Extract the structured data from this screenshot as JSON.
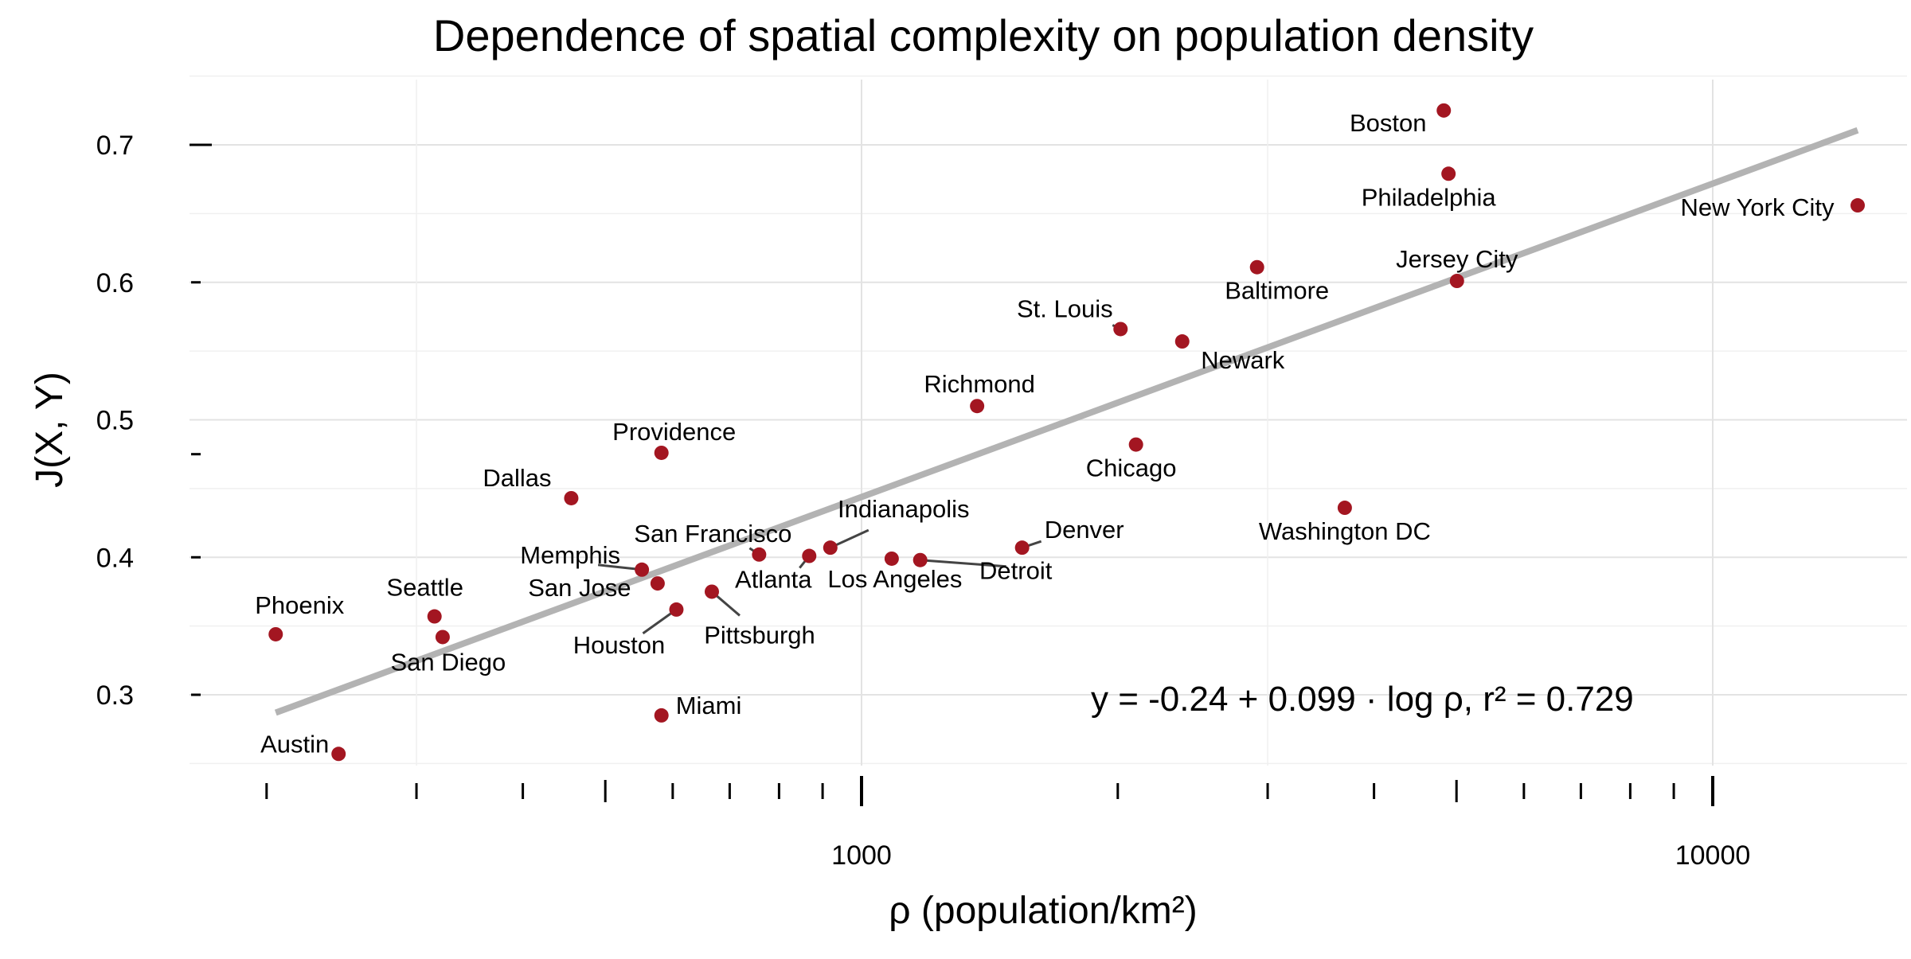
{
  "chart_data": {
    "type": "scatter",
    "title": "Dependence of spatial complexity on population density",
    "xlabel": "ρ (population/km²)",
    "ylabel": "J(X, Y)",
    "x_scale": "log",
    "xlim": [
      150,
      20000
    ],
    "ylim": [
      0.24,
      0.75
    ],
    "x_ticks": [
      {
        "value": 1000,
        "label": "1000"
      },
      {
        "value": 10000,
        "label": "10000"
      }
    ],
    "y_ticks": [
      {
        "value": 0.3,
        "label": "0.3"
      },
      {
        "value": 0.4,
        "label": "0.4"
      },
      {
        "value": 0.5,
        "label": "0.5"
      },
      {
        "value": 0.6,
        "label": "0.6"
      },
      {
        "value": 0.7,
        "label": "0.7"
      }
    ],
    "grid": true,
    "point_color": "#a31621",
    "fit_line_color": "#b3b3b3",
    "fit": {
      "intercept": -0.24,
      "slope": 0.099,
      "r2": 0.729,
      "x_range": [
        205,
        14800
      ],
      "equation_text": "y = -0.24 + 0.099 · log ρ,  r² = 0.729"
    },
    "points": [
      {
        "name": "Phoenix",
        "x": 205,
        "y": 0.344
      },
      {
        "name": "Austin",
        "x": 243,
        "y": 0.257
      },
      {
        "name": "Seattle",
        "x": 315,
        "y": 0.357
      },
      {
        "name": "San Diego",
        "x": 322,
        "y": 0.342
      },
      {
        "name": "Dallas",
        "x": 456,
        "y": 0.443
      },
      {
        "name": "Memphis",
        "x": 552,
        "y": 0.391
      },
      {
        "name": "San Jose",
        "x": 576,
        "y": 0.381
      },
      {
        "name": "Providence",
        "x": 582,
        "y": 0.476
      },
      {
        "name": "Miami",
        "x": 582,
        "y": 0.285
      },
      {
        "name": "Houston",
        "x": 606,
        "y": 0.362
      },
      {
        "name": "Pittsburgh",
        "x": 667,
        "y": 0.375
      },
      {
        "name": "San Francisco",
        "x": 758,
        "y": 0.402
      },
      {
        "name": "Atlanta",
        "x": 868,
        "y": 0.401
      },
      {
        "name": "Indianapolis",
        "x": 919,
        "y": 0.407
      },
      {
        "name": "Los Angeles",
        "x": 1085,
        "y": 0.399
      },
      {
        "name": "Detroit",
        "x": 1172,
        "y": 0.398
      },
      {
        "name": "Richmond",
        "x": 1367,
        "y": 0.51
      },
      {
        "name": "Denver",
        "x": 1544,
        "y": 0.407
      },
      {
        "name": "St. Louis",
        "x": 2015,
        "y": 0.566
      },
      {
        "name": "Chicago",
        "x": 2101,
        "y": 0.482
      },
      {
        "name": "Newark",
        "x": 2381,
        "y": 0.557
      },
      {
        "name": "Baltimore",
        "x": 2915,
        "y": 0.611
      },
      {
        "name": "Washington DC",
        "x": 3696,
        "y": 0.436
      },
      {
        "name": "Boston",
        "x": 4831,
        "y": 0.725
      },
      {
        "name": "Philadelphia",
        "x": 4893,
        "y": 0.679
      },
      {
        "name": "Jersey City",
        "x": 5006,
        "y": 0.601
      },
      {
        "name": "New York City",
        "x": 14800,
        "y": 0.656
      }
    ]
  }
}
